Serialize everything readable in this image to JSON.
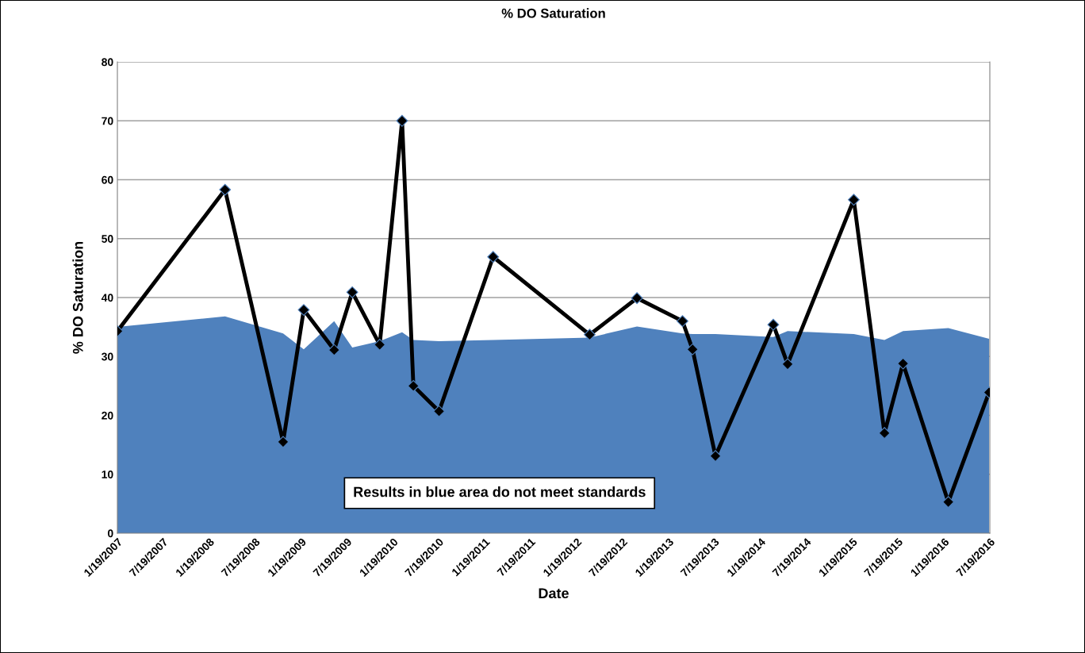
{
  "chart_data": {
    "type": "line",
    "title": "% DO Saturation",
    "xlabel": "Date",
    "ylabel": "% DO Saturation",
    "x": [
      "2007-01-19",
      "2008-03-22",
      "2008-11-08",
      "2009-01-29",
      "2009-05-30",
      "2009-08-10",
      "2009-11-27",
      "2010-02-24",
      "2010-04-10",
      "2010-07-21",
      "2011-02-21",
      "2012-03-11",
      "2012-09-15",
      "2013-03-15",
      "2013-04-24",
      "2013-07-24",
      "2014-03-11",
      "2014-05-07",
      "2015-01-25",
      "2015-05-27",
      "2015-08-09",
      "2016-02-05",
      "2016-07-16"
    ],
    "series": [
      {
        "type": "area",
        "color": "#4f81bd",
        "values": [
          35.0,
          36.8,
          33.9,
          31.2,
          36.0,
          31.5,
          32.6,
          34.1,
          32.8,
          32.6,
          32.8,
          33.2,
          35.1,
          33.9,
          33.8,
          33.8,
          33.3,
          34.3,
          33.8,
          32.8,
          34.3,
          34.8,
          33.0
        ]
      },
      {
        "color": "#000000",
        "marker": "diamond",
        "line_style": "solid",
        "values": [
          34.3,
          58.3,
          15.5,
          37.9,
          31.1,
          40.9,
          32.0,
          70.0,
          25.0,
          20.7,
          46.9,
          33.7,
          39.9,
          36.0,
          31.2,
          13.1,
          35.4,
          28.7,
          56.6,
          17.0,
          28.8,
          5.3,
          23.9
        ]
      }
    ],
    "xlim": [
      "2007-01-19",
      "2016-07-19"
    ],
    "xticks": [
      {
        "value": "2007-01-19",
        "label": "1/19/2007"
      },
      {
        "value": "2007-07-19",
        "label": "7/19/2007"
      },
      {
        "value": "2008-01-19",
        "label": "1/19/2008"
      },
      {
        "value": "2008-07-19",
        "label": "7/19/2008"
      },
      {
        "value": "2009-01-19",
        "label": "1/19/2009"
      },
      {
        "value": "2009-07-19",
        "label": "7/19/2009"
      },
      {
        "value": "2010-01-19",
        "label": "1/19/2010"
      },
      {
        "value": "2010-07-19",
        "label": "7/19/2010"
      },
      {
        "value": "2011-01-19",
        "label": "1/19/2011"
      },
      {
        "value": "2011-07-19",
        "label": "7/19/2011"
      },
      {
        "value": "2012-01-19",
        "label": "1/19/2012"
      },
      {
        "value": "2012-07-19",
        "label": "7/19/2012"
      },
      {
        "value": "2013-01-19",
        "label": "1/19/2013"
      },
      {
        "value": "2013-07-19",
        "label": "7/19/2013"
      },
      {
        "value": "2014-01-19",
        "label": "1/19/2014"
      },
      {
        "value": "2014-07-19",
        "label": "7/19/2014"
      },
      {
        "value": "2015-01-19",
        "label": "1/19/2015"
      },
      {
        "value": "2015-07-19",
        "label": "7/19/2015"
      },
      {
        "value": "2016-01-19",
        "label": "1/19/2016"
      },
      {
        "value": "2016-07-19",
        "label": "7/19/2016"
      }
    ],
    "ylim": [
      0,
      80
    ],
    "yticks": [
      0,
      10,
      20,
      30,
      40,
      50,
      60,
      70,
      80
    ],
    "grid": "y",
    "legend": false,
    "annotations": [
      "Results in blue area do not meet standards"
    ]
  }
}
